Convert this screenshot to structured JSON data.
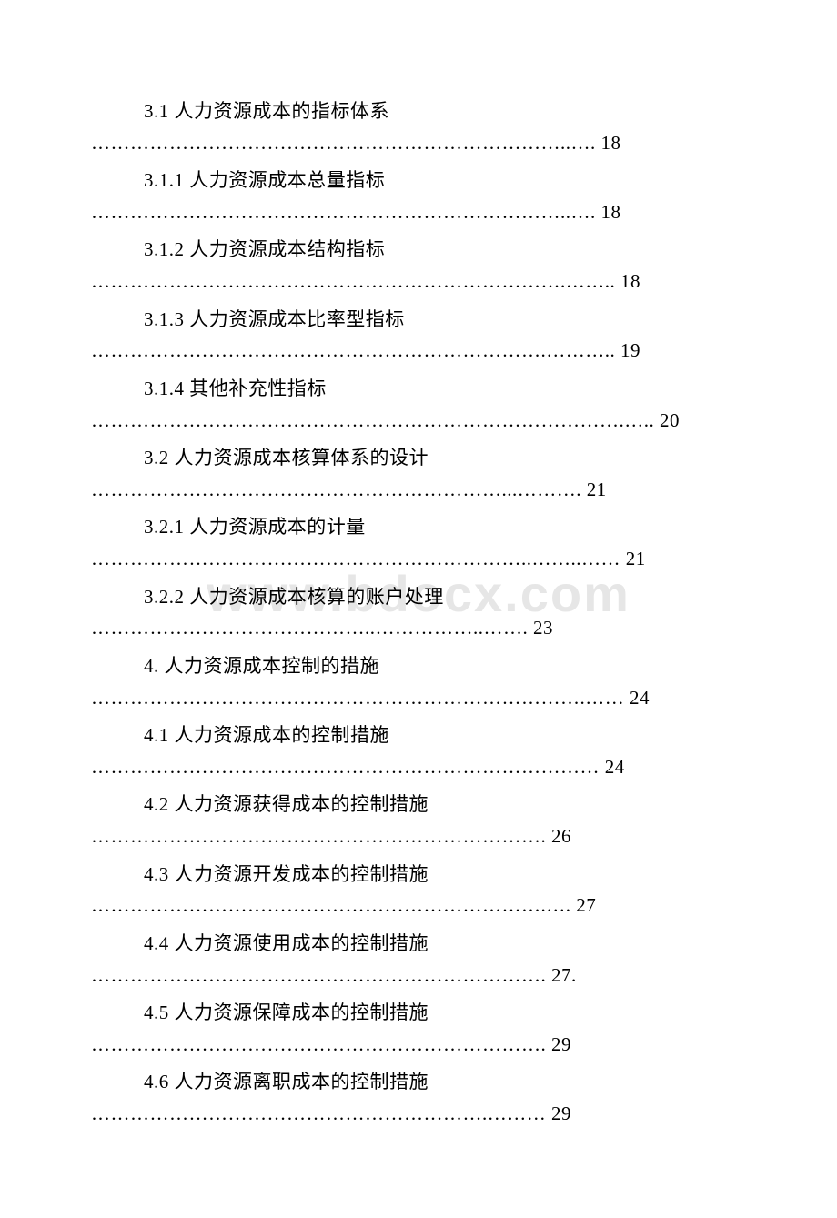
{
  "watermark": {
    "text": "www.bdocx.com",
    "color": "rgba(200, 200, 200, 0.45)",
    "fontsize": 56
  },
  "document": {
    "background_color": "#ffffff",
    "text_color": "#000000",
    "font_family": "SimSun",
    "base_fontsize": 21
  },
  "toc_entries": [
    {
      "title": "3.1 人力资源成本的指标体系",
      "leader": "………………………………………………………………..…. 18"
    },
    {
      "title": "3.1.1 人力资源成本总量指标",
      "leader": "………………………………………………………………..…. 18"
    },
    {
      "title": "3.1.2 人力资源成本结构指标",
      "leader": "……………………………………………………………….…….. 18"
    },
    {
      "title": "3.1.3 人力资源成本比率型指标",
      "leader": "…………………………………………………………….……….. 19"
    },
    {
      "title": "3.1.4 其他补充性指标",
      "leader": "……………………………………………………………………….….. 20"
    },
    {
      "title": "3.2 人力资源成本核算体系的设计",
      "leader": "………………………………………………………...………. 21"
    },
    {
      "title": "3.2.1 人力资源成本的计量",
      "leader": "…………………………………………………………..……..…… 21"
    },
    {
      "title": "3.2.2 人力资源成本核算的账户处理",
      "leader": "……………………………………..……………..……. 23"
    },
    {
      "title": "4. 人力资源成本控制的措施",
      "leader": "………………………………………………………………….…… 24"
    },
    {
      "title": "4.1 人力资源成本的控制措施",
      "leader": "…………………………………………………………………… 24"
    },
    {
      "title": "4.2 人力资源获得成本的控制措施",
      "leader": "……………………………………………………………. 26"
    },
    {
      "title": "4.3 人力资源开发成本的控制措施",
      "leader": "…………………………………………………………….…. 27"
    },
    {
      "title": "4.4 人力资源使用成本的控制措施",
      "leader": "……………………………………………………………. 27."
    },
    {
      "title": "4.5 人力资源保障成本的控制措施",
      "leader": "……………………………………………………………. 29"
    },
    {
      "title": "4.6 人力资源离职成本的控制措施",
      "leader": "…………………………………………………….……… 29"
    }
  ]
}
